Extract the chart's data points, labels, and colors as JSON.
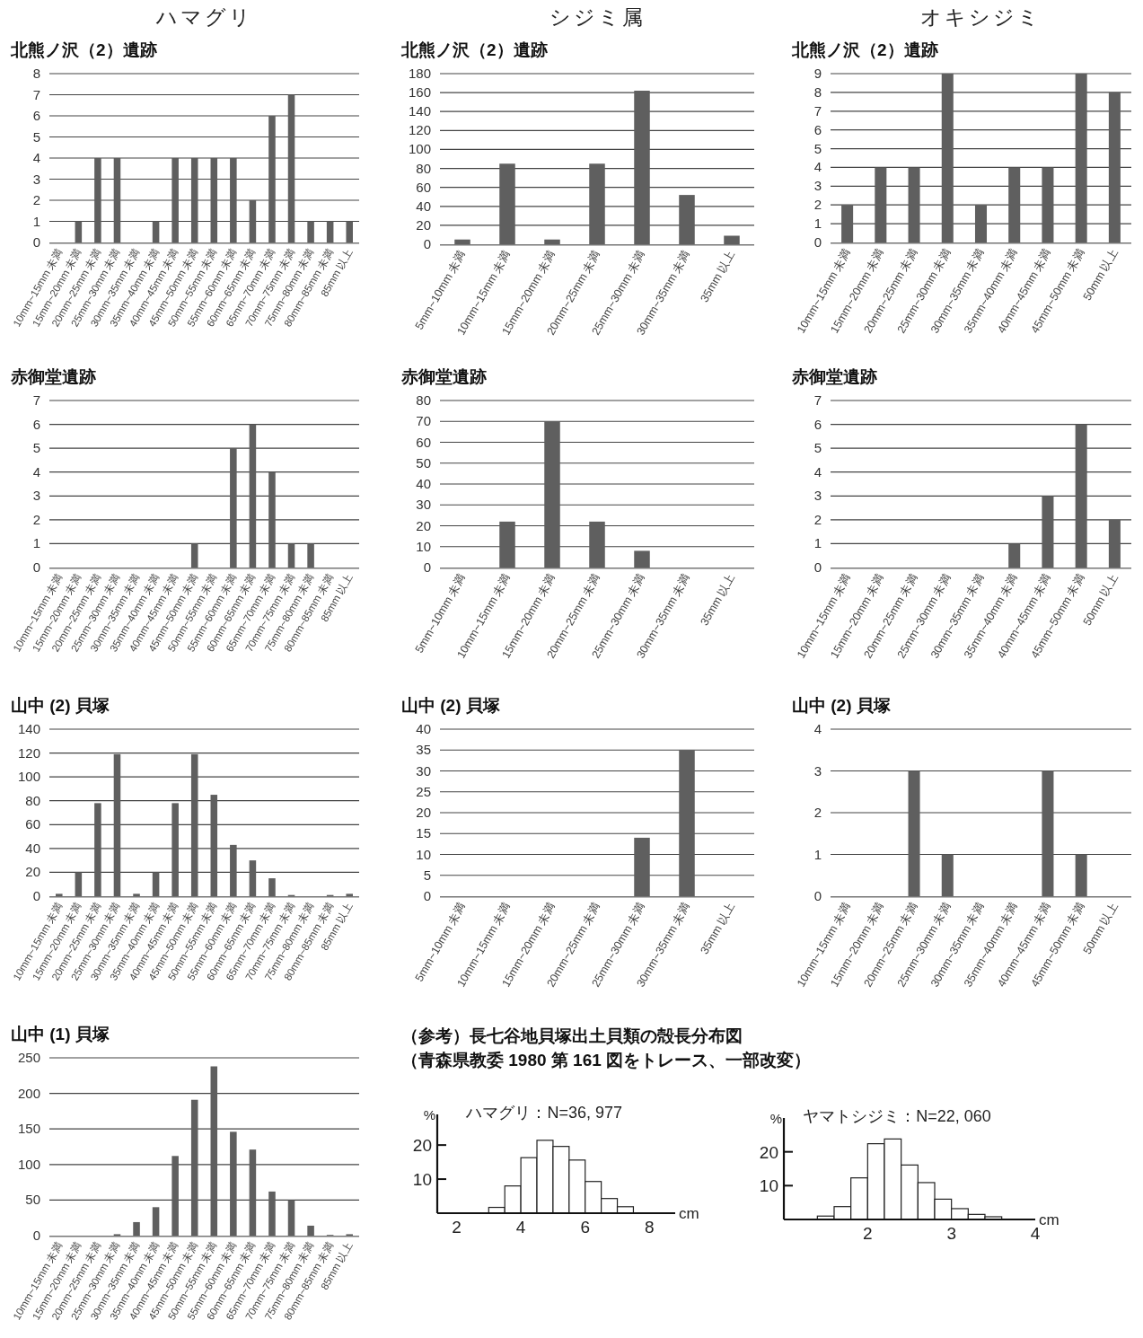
{
  "chart_data": [
    {
      "type": "bar",
      "title": "ハマグリ",
      "subtitle": "北熊ノ沢（2）遺跡",
      "categories": [
        "10mm~15mm 未満",
        "15mm~20mm 未満",
        "20mm~25mm 未満",
        "25mm~30mm 未満",
        "30mm~35mm 未満",
        "35mm~40mm 未満",
        "40mm~45mm 未満",
        "45mm~50mm 未満",
        "50mm~55mm 未満",
        "55mm~60mm 未満",
        "60mm~65mm 未満",
        "65mm~70mm 未満",
        "70mm~75mm 未満",
        "75mm~80mm 未満",
        "80mm~85mm 未満",
        "85mm 以上"
      ],
      "values": [
        0,
        1,
        4,
        4,
        0,
        1,
        4,
        4,
        4,
        4,
        2,
        6,
        7,
        1,
        1,
        1
      ],
      "color": "#5f5f5f",
      "ylim": [
        0,
        8
      ],
      "yticks": [
        0,
        1,
        2,
        3,
        4,
        5,
        6,
        7,
        8
      ],
      "grid": "y"
    },
    {
      "type": "bar",
      "title": "シジミ属",
      "subtitle": "北熊ノ沢（2）遺跡",
      "categories": [
        "5mm~10mm 未満",
        "10mm~15mm 未満",
        "15mm~20mm 未満",
        "20mm~25mm 未満",
        "25mm~30mm 未満",
        "30mm~35mm 未満",
        "35mm 以上"
      ],
      "values": [
        5,
        85,
        5,
        85,
        162,
        52,
        9
      ],
      "color": "#5f5f5f",
      "ylim": [
        0,
        180
      ],
      "yticks": [
        0,
        20,
        40,
        60,
        80,
        100,
        120,
        140,
        160,
        180
      ],
      "grid": "y"
    },
    {
      "type": "bar",
      "title": "オキシジミ",
      "subtitle": "北熊ノ沢（2）遺跡",
      "categories": [
        "10mm~15mm 未満",
        "15mm~20mm 未満",
        "20mm~25mm 未満",
        "25mm~30mm 未満",
        "30mm~35mm 未満",
        "35mm~40mm 未満",
        "40mm~45mm 未満",
        "45mm~50mm 未満",
        "50mm 以上"
      ],
      "values": [
        2,
        4,
        4,
        9,
        2,
        4,
        4,
        9,
        8
      ],
      "color": "#5f5f5f",
      "ylim": [
        0,
        9
      ],
      "yticks": [
        0,
        1,
        2,
        3,
        4,
        5,
        6,
        7,
        8,
        9
      ],
      "grid": "y"
    },
    {
      "type": "bar",
      "title": "赤御堂遺跡",
      "categories": [
        "10mm~15mm 未満",
        "15mm~20mm 未満",
        "20mm~25mm 未満",
        "25mm~30mm 未満",
        "30mm~35mm 未満",
        "35mm~40mm 未満",
        "40mm~45mm 未満",
        "45mm~50mm 未満",
        "50mm~55mm 未満",
        "55mm~60mm 未満",
        "60mm~65mm 未満",
        "65mm~70mm 未満",
        "70mm~75mm 未満",
        "75mm~80mm 未満",
        "80mm~85mm 未満",
        "85mm 以上"
      ],
      "values": [
        0,
        0,
        0,
        0,
        0,
        0,
        0,
        1,
        0,
        5,
        6,
        4,
        1,
        1,
        0,
        0
      ],
      "color": "#5f5f5f",
      "ylim": [
        0,
        7
      ],
      "yticks": [
        0,
        1,
        2,
        3,
        4,
        5,
        6,
        7
      ],
      "grid": "y"
    },
    {
      "type": "bar",
      "title": "赤御堂遺跡",
      "categories": [
        "5mm~10mm 未満",
        "10mm~15mm 未満",
        "15mm~20mm 未満",
        "20mm~25mm 未満",
        "25mm~30mm 未満",
        "30mm~35mm 未満",
        "35mm 以上"
      ],
      "values": [
        0,
        22,
        70,
        22,
        8,
        0,
        0
      ],
      "color": "#5f5f5f",
      "ylim": [
        0,
        80
      ],
      "yticks": [
        0,
        10,
        20,
        30,
        40,
        50,
        60,
        70,
        80
      ],
      "grid": "y"
    },
    {
      "type": "bar",
      "title": "赤御堂遺跡",
      "categories": [
        "10mm~15mm 未満",
        "15mm~20mm 未満",
        "20mm~25mm 未満",
        "25mm~30mm 未満",
        "30mm~35mm 未満",
        "35mm~40mm 未満",
        "40mm~45mm 未満",
        "45mm~50mm 未満",
        "50mm 以上"
      ],
      "values": [
        0,
        0,
        0,
        0,
        0,
        1,
        3,
        6,
        2
      ],
      "color": "#5f5f5f",
      "ylim": [
        0,
        7
      ],
      "yticks": [
        0,
        1,
        2,
        3,
        4,
        5,
        6,
        7
      ],
      "grid": "y"
    },
    {
      "type": "bar",
      "title": "山中 (2) 貝塚",
      "categories": [
        "10mm~15mm 未満",
        "15mm~20mm 未満",
        "20mm~25mm 未満",
        "25mm~30mm 未満",
        "30mm~35mm 未満",
        "35mm~40mm 未満",
        "40mm~45mm 未満",
        "45mm~50mm 未満",
        "50mm~55mm 未満",
        "55mm~60mm 未満",
        "60mm~65mm 未満",
        "65mm~70mm 未満",
        "70mm~75mm 未満",
        "75mm~80mm 未満",
        "80mm~85mm 未満",
        "85mm 以上"
      ],
      "values": [
        2,
        20,
        78,
        119,
        2,
        20,
        78,
        119,
        85,
        43,
        30,
        15,
        1,
        0,
        1,
        2
      ],
      "color": "#5f5f5f",
      "ylim": [
        0,
        140
      ],
      "yticks": [
        0,
        20,
        40,
        60,
        80,
        100,
        120,
        140
      ],
      "grid": "y"
    },
    {
      "type": "bar",
      "title": "山中 (2) 貝塚",
      "categories": [
        "5mm~10mm 未満",
        "10mm~15mm 未満",
        "15mm~20mm 未満",
        "20mm~25mm 未満",
        "25mm~30mm 未満",
        "30mm~35mm 未満",
        "35mm 以上"
      ],
      "values": [
        0,
        0,
        0,
        0,
        14,
        35,
        0
      ],
      "color": "#5f5f5f",
      "ylim": [
        0,
        40
      ],
      "yticks": [
        0,
        5,
        10,
        15,
        20,
        25,
        30,
        35,
        40
      ],
      "grid": "y"
    },
    {
      "type": "bar",
      "title": "山中 (2) 貝塚",
      "categories": [
        "10mm~15mm 未満",
        "15mm~20mm 未満",
        "20mm~25mm 未満",
        "25mm~30mm 未満",
        "30mm~35mm 未満",
        "35mm~40mm 未満",
        "40mm~45mm 未満",
        "45mm~50mm 未満",
        "50mm 以上"
      ],
      "values": [
        0,
        0,
        3,
        1,
        0,
        0,
        3,
        1,
        0
      ],
      "color": "#5f5f5f",
      "ylim": [
        0,
        4
      ],
      "yticks": [
        0,
        1,
        2,
        3,
        4
      ],
      "grid": "y"
    },
    {
      "type": "bar",
      "title": "山中 (1) 貝塚",
      "categories": [
        "10mm~15mm 未満",
        "15mm~20mm 未満",
        "20mm~25mm 未満",
        "25mm~30mm 未満",
        "30mm~35mm 未満",
        "35mm~40mm 未満",
        "40mm~45mm 未満",
        "45mm~50mm 未満",
        "50mm~55mm 未満",
        "55mm~60mm 未満",
        "60mm~65mm 未満",
        "65mm~70mm 未満",
        "70mm~75mm 未満",
        "75mm~80mm 未満",
        "80mm~85mm 未満",
        "85mm 以上"
      ],
      "values": [
        0,
        0,
        0,
        2,
        19,
        40,
        112,
        191,
        238,
        146,
        121,
        62,
        50,
        14,
        1,
        2
      ],
      "color": "#5f5f5f",
      "ylim": [
        0,
        250
      ],
      "yticks": [
        0,
        50,
        100,
        150,
        200,
        250
      ],
      "grid": "y"
    },
    {
      "type": "other",
      "title": "（参考）長七谷地貝塚出土貝類の殻長分布図",
      "subtitle": "（青森県教委 1980 第 161 図をトレース、一部改変）"
    },
    {
      "type": "histogram",
      "title": "ハマグリ：N=36, 977",
      "xlabel": "cm",
      "ylabel": "%",
      "bins": [
        3.0,
        3.5,
        4.0,
        4.5,
        5.0,
        5.5,
        6.0,
        6.5,
        7.0,
        7.5
      ],
      "values": [
        1.7,
        8,
        16.3,
        21.4,
        19.6,
        15.6,
        9.3,
        4.3,
        1.9
      ],
      "color": "#ffffff",
      "xlim": [
        1.4,
        8.8
      ],
      "ylim": [
        0,
        29
      ],
      "xticks": [
        2,
        4,
        6,
        8
      ],
      "yticks": [
        10,
        20
      ]
    },
    {
      "type": "histogram",
      "title": "ヤマトシジミ：N=22, 060",
      "xlabel": "cm",
      "ylabel": "%",
      "bins": [
        1.4,
        1.6,
        1.8,
        2.0,
        2.2,
        2.4,
        2.6,
        2.8,
        3.0,
        3.2,
        3.4,
        3.6
      ],
      "values": [
        1.0,
        3.8,
        12.3,
        22.4,
        23.8,
        16.1,
        10.9,
        6.0,
        3.2,
        1.5,
        0.8
      ],
      "color": "#ffffff",
      "xlim": [
        1.0,
        4.0
      ],
      "ylim": [
        0,
        30
      ],
      "xticks": [
        2,
        3,
        4
      ],
      "yticks": [
        10,
        20
      ]
    }
  ]
}
